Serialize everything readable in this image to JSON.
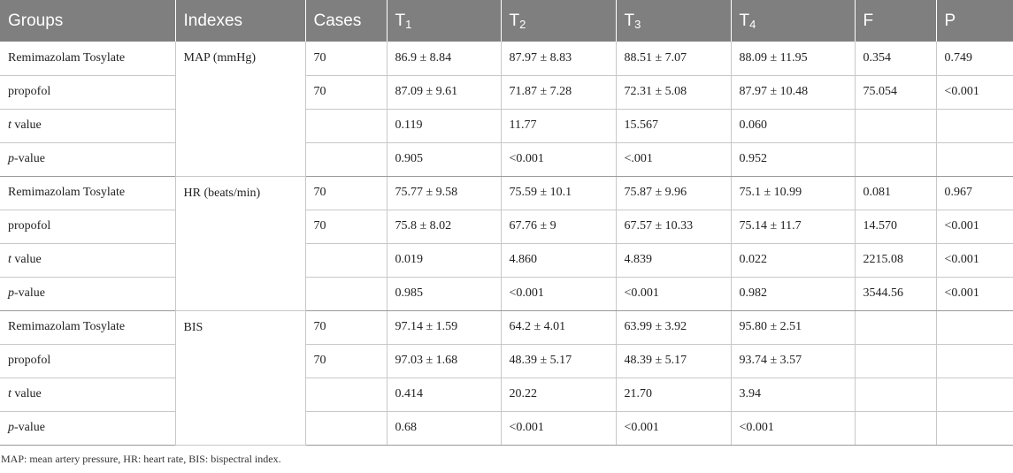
{
  "headers": [
    {
      "main": "Groups",
      "sub": ""
    },
    {
      "main": "Indexes",
      "sub": ""
    },
    {
      "main": "Cases",
      "sub": ""
    },
    {
      "main": "T",
      "sub": "1"
    },
    {
      "main": "T",
      "sub": "2"
    },
    {
      "main": "T",
      "sub": "3"
    },
    {
      "main": "T",
      "sub": "4"
    },
    {
      "main": "F",
      "sub": ""
    },
    {
      "main": "P",
      "sub": ""
    }
  ],
  "sections": [
    {
      "index": "MAP (mmHg)",
      "rows": [
        {
          "group_em": "",
          "group": "Remimazolam Tosylate",
          "cases": "70",
          "t1": "86.9 ± 8.84",
          "t2": "87.97 ± 8.83",
          "t3": "88.51 ± 7.07",
          "t4": "88.09 ± 11.95",
          "f": "0.354",
          "p": "0.749"
        },
        {
          "group_em": "",
          "group": "propofol",
          "cases": "70",
          "t1": "87.09 ± 9.61",
          "t2": "71.87 ± 7.28",
          "t3": "72.31 ± 5.08",
          "t4": "87.97 ± 10.48",
          "f": "75.054",
          "p": "<0.001"
        },
        {
          "group_em": "t",
          "group": " value",
          "cases": "",
          "t1": "0.119",
          "t2": "11.77",
          "t3": "15.567",
          "t4": "0.060",
          "f": "",
          "p": ""
        },
        {
          "group_em": "p",
          "group": "-value",
          "cases": "",
          "t1": "0.905",
          "t2": "<0.001",
          "t3": "<.001",
          "t4": "0.952",
          "f": "",
          "p": ""
        }
      ]
    },
    {
      "index": "HR (beats/min)",
      "rows": [
        {
          "group_em": "",
          "group": "Remimazolam Tosylate",
          "cases": "70",
          "t1": "75.77 ± 9.58",
          "t2": "75.59 ± 10.1",
          "t3": "75.87 ± 9.96",
          "t4": "75.1 ± 10.99",
          "f": "0.081",
          "p": "0.967"
        },
        {
          "group_em": "",
          "group": "propofol",
          "cases": "70",
          "t1": "75.8 ± 8.02",
          "t2": "67.76 ± 9",
          "t3": "67.57 ± 10.33",
          "t4": "75.14 ± 11.7",
          "f": "14.570",
          "p": "<0.001"
        },
        {
          "group_em": "t",
          "group": " value",
          "cases": "",
          "t1": "0.019",
          "t2": "4.860",
          "t3": "4.839",
          "t4": "0.022",
          "f": "2215.08",
          "p": "<0.001"
        },
        {
          "group_em": "p",
          "group": "-value",
          "cases": "",
          "t1": "0.985",
          "t2": "<0.001",
          "t3": "<0.001",
          "t4": "0.982",
          "f": "3544.56",
          "p": "<0.001"
        }
      ]
    },
    {
      "index": "BIS",
      "rows": [
        {
          "group_em": "",
          "group": "Remimazolam Tosylate",
          "cases": "70",
          "t1": "97.14 ± 1.59",
          "t2": "64.2 ± 4.01",
          "t3": "63.99 ± 3.92",
          "t4": "95.80 ± 2.51",
          "f": "",
          "p": ""
        },
        {
          "group_em": "",
          "group": "propofol",
          "cases": "70",
          "t1": "97.03 ± 1.68",
          "t2": "48.39 ± 5.17",
          "t3": "48.39 ± 5.17",
          "t4": "93.74 ± 3.57",
          "f": "",
          "p": ""
        },
        {
          "group_em": "t",
          "group": " value",
          "cases": "",
          "t1": "0.414",
          "t2": "20.22",
          "t3": "21.70",
          "t4": "3.94",
          "f": "",
          "p": ""
        },
        {
          "group_em": "p",
          "group": "-value",
          "cases": "",
          "t1": "0.68",
          "t2": "<0.001",
          "t3": "<0.001",
          "t4": "<0.001",
          "f": "",
          "p": ""
        }
      ]
    }
  ],
  "footnote": "MAP: mean artery pressure, HR: heart rate, BIS: bispectral index."
}
